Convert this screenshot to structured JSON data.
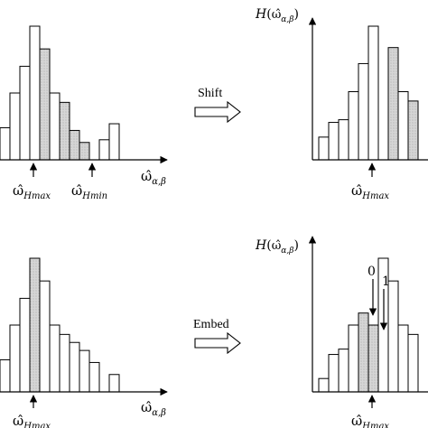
{
  "axis_symbols": {
    "omega": "ω̂",
    "omega_subscript": "α,β",
    "H": "H",
    "H_open": "(",
    "H_close": ")",
    "hmax": "Hmax",
    "hmin": "Hmin"
  },
  "arrows": {
    "shift": "Shift",
    "embed": "Embed"
  },
  "bit_labels": {
    "zero": "0",
    "one": "1"
  },
  "colors": {
    "shaded": "#d3d3d3",
    "stroke": "#000000",
    "background": "#ffffff"
  },
  "panels": [
    {
      "id": "original-top",
      "has_H_label": false,
      "markers": [
        "hmax",
        "hmin"
      ],
      "bars": [
        {
          "h": 0.24,
          "shaded": false
        },
        {
          "h": 0.5,
          "shaded": false
        },
        {
          "h": 0.7,
          "shaded": false
        },
        {
          "h": 1.0,
          "shaded": false
        },
        {
          "h": 0.83,
          "shaded": true
        },
        {
          "h": 0.5,
          "shaded": false
        },
        {
          "h": 0.43,
          "shaded": true
        },
        {
          "h": 0.22,
          "shaded": true
        },
        {
          "h": 0.13,
          "shaded": true
        },
        {
          "h": 0.0,
          "shaded": false
        },
        {
          "h": 0.15,
          "shaded": false
        },
        {
          "h": 0.27,
          "shaded": false
        }
      ]
    },
    {
      "id": "shifted-top",
      "has_H_label": true,
      "markers": [
        "hmax"
      ],
      "bars": [
        {
          "h": 0.17,
          "shaded": false
        },
        {
          "h": 0.28,
          "shaded": false
        },
        {
          "h": 0.3,
          "shaded": false
        },
        {
          "h": 0.51,
          "shaded": false
        },
        {
          "h": 0.72,
          "shaded": false
        },
        {
          "h": 1.0,
          "shaded": false
        },
        {
          "h": 0.0,
          "shaded": false
        },
        {
          "h": 0.84,
          "shaded": true
        },
        {
          "h": 0.51,
          "shaded": false
        },
        {
          "h": 0.44,
          "shaded": true
        }
      ]
    },
    {
      "id": "original-bottom",
      "has_H_label": false,
      "markers": [
        "hmax"
      ],
      "bars": [
        {
          "h": 0.24,
          "shaded": false
        },
        {
          "h": 0.5,
          "shaded": false
        },
        {
          "h": 0.7,
          "shaded": false
        },
        {
          "h": 1.0,
          "shaded": true
        },
        {
          "h": 0.83,
          "shaded": false
        },
        {
          "h": 0.5,
          "shaded": false
        },
        {
          "h": 0.43,
          "shaded": false
        },
        {
          "h": 0.37,
          "shaded": false
        },
        {
          "h": 0.31,
          "shaded": false
        },
        {
          "h": 0.22,
          "shaded": false
        },
        {
          "h": 0.0,
          "shaded": false
        },
        {
          "h": 0.13,
          "shaded": false
        }
      ]
    },
    {
      "id": "embedded-bottom",
      "has_H_label": true,
      "markers": [
        "hmax"
      ],
      "bars": [
        {
          "h": 0.1,
          "shaded": false
        },
        {
          "h": 0.28,
          "shaded": false
        },
        {
          "h": 0.32,
          "shaded": false
        },
        {
          "h": 0.5,
          "shaded": false
        },
        {
          "h": 0.59,
          "shaded": true
        },
        {
          "h": 0.5,
          "shaded": true
        },
        {
          "h": 1.0,
          "shaded": false
        },
        {
          "h": 0.83,
          "shaded": false
        },
        {
          "h": 0.5,
          "shaded": false
        },
        {
          "h": 0.43,
          "shaded": false
        }
      ]
    }
  ]
}
